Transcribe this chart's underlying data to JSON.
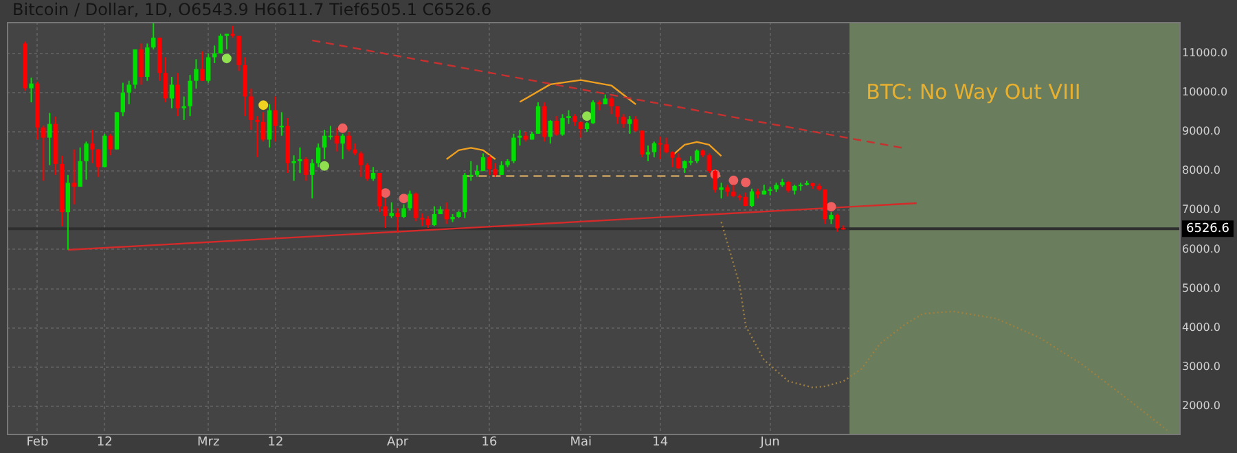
{
  "chart_data": {
    "type": "candlestick",
    "title": "Bitcoin / Dollar, 1D, O6543.9 H6611.7 Tief6505.1 C6526.6",
    "annotations": [
      "BTC: No Way Out VIII"
    ],
    "x": [
      "--01-30",
      "--01-31",
      "--02-01",
      "--02-02",
      "--02-03",
      "--02-04",
      "--02-05",
      "--02-06",
      "--02-07",
      "--02-08",
      "--02-09",
      "--02-10",
      "--02-11",
      "--02-12",
      "--02-13",
      "--02-14",
      "--02-15",
      "--02-16",
      "--02-17",
      "--02-18",
      "--02-19",
      "--02-20",
      "--02-21",
      "--02-22",
      "--02-23",
      "--02-24",
      "--02-25",
      "--02-26",
      "--02-27",
      "--02-28",
      "--03-01",
      "--03-02",
      "--03-03",
      "--03-04",
      "--03-05",
      "--03-06",
      "--03-07",
      "--03-08",
      "--03-09",
      "--03-10",
      "--03-11",
      "--03-12",
      "--03-13",
      "--03-14",
      "--03-15",
      "--03-16",
      "--03-17",
      "--03-18",
      "--03-19",
      "--03-20",
      "--03-21",
      "--03-22",
      "--03-23",
      "--03-24",
      "--03-25",
      "--03-26",
      "--03-27",
      "--03-28",
      "--03-29",
      "--03-30",
      "--03-31",
      "--04-01",
      "--04-02",
      "--04-03",
      "--04-04",
      "--04-05",
      "--04-06",
      "--04-07",
      "--04-08",
      "--04-09",
      "--04-10",
      "--04-11",
      "--04-12",
      "--04-13",
      "--04-14",
      "--04-15",
      "--04-16",
      "--04-17",
      "--04-18",
      "--04-19",
      "--04-20",
      "--04-21",
      "--04-22",
      "--04-23",
      "--04-24",
      "--04-25",
      "--04-26",
      "--04-27",
      "--04-28",
      "--04-29",
      "--04-30",
      "--05-01",
      "--05-02",
      "--05-03",
      "--05-04",
      "--05-05",
      "--05-06",
      "--05-07",
      "--05-08",
      "--05-09",
      "--05-10",
      "--05-11",
      "--05-12",
      "--05-13",
      "--05-14",
      "--05-15",
      "--05-16",
      "--05-17",
      "--05-18",
      "--05-19",
      "--05-20",
      "--05-21",
      "--05-22",
      "--05-23",
      "--05-24",
      "--05-25",
      "--05-26",
      "--05-27",
      "--05-28",
      "--05-29",
      "--05-30",
      "--05-31",
      "--06-01",
      "--06-02",
      "--06-03",
      "--06-04",
      "--06-05",
      "--06-06",
      "--06-07",
      "--06-08",
      "--06-09",
      "--06-10",
      "--06-11",
      "--06-12",
      "--06-13"
    ],
    "ohlc": [
      [
        11250,
        11300,
        10050,
        10110
      ],
      [
        10110,
        10380,
        9750,
        10230
      ],
      [
        10230,
        10280,
        8800,
        9110
      ],
      [
        9110,
        9160,
        7750,
        8850
      ],
      [
        8850,
        9480,
        8150,
        9200
      ],
      [
        9200,
        9390,
        7900,
        8180
      ],
      [
        8180,
        8390,
        6590,
        6950
      ],
      [
        6950,
        7900,
        5990,
        7700
      ],
      [
        7700,
        8550,
        7150,
        7600
      ],
      [
        7600,
        8600,
        7600,
        8250
      ],
      [
        8250,
        8750,
        7780,
        8700
      ],
      [
        8700,
        9050,
        8200,
        8550
      ],
      [
        8550,
        8560,
        7850,
        8100
      ],
      [
        8100,
        8950,
        8100,
        8900
      ],
      [
        8900,
        8950,
        8400,
        8550
      ],
      [
        8550,
        9500,
        8550,
        9500
      ],
      [
        9500,
        10250,
        9400,
        10000
      ],
      [
        10000,
        10300,
        9700,
        10200
      ],
      [
        10200,
        11100,
        10100,
        11100
      ],
      [
        11100,
        11250,
        10200,
        10400
      ],
      [
        10400,
        11250,
        10300,
        11150
      ],
      [
        11150,
        11800,
        11100,
        11400
      ],
      [
        11400,
        11400,
        10300,
        10500
      ],
      [
        10500,
        10900,
        9750,
        9850
      ],
      [
        9850,
        10400,
        9600,
        10200
      ],
      [
        10200,
        10500,
        9400,
        9600
      ],
      [
        9600,
        9900,
        9300,
        9650
      ],
      [
        9650,
        10450,
        9400,
        10300
      ],
      [
        10300,
        10850,
        10100,
        10600
      ],
      [
        10600,
        11050,
        10300,
        10300
      ],
      [
        10300,
        11000,
        10250,
        10900
      ],
      [
        10900,
        11200,
        10750,
        11000
      ],
      [
        11000,
        11500,
        11000,
        11450
      ],
      [
        11450,
        11500,
        11100,
        11500
      ],
      [
        11500,
        11700,
        11400,
        11450
      ],
      [
        11450,
        11450,
        10550,
        10700
      ],
      [
        10700,
        10900,
        9400,
        9900
      ],
      [
        9900,
        10100,
        9050,
        9300
      ],
      [
        9300,
        9400,
        8350,
        9250
      ],
      [
        9250,
        9500,
        8750,
        8800
      ],
      [
        8800,
        9700,
        8600,
        9550
      ],
      [
        9550,
        9900,
        8750,
        9150
      ],
      [
        9150,
        9500,
        8900,
        9150
      ],
      [
        9150,
        9350,
        7950,
        8200
      ],
      [
        8200,
        8400,
        7750,
        8250
      ],
      [
        8250,
        8600,
        7950,
        8300
      ],
      [
        8300,
        8350,
        7750,
        7900
      ],
      [
        7900,
        8300,
        7300,
        8200
      ],
      [
        8200,
        8700,
        8100,
        8600
      ],
      [
        8600,
        9050,
        8300,
        8900
      ],
      [
        8900,
        9150,
        8800,
        8900
      ],
      [
        8900,
        9100,
        8500,
        8700
      ],
      [
        8700,
        8950,
        8300,
        8900
      ],
      [
        8900,
        9000,
        8500,
        8550
      ],
      [
        8550,
        8700,
        8400,
        8450
      ],
      [
        8450,
        8500,
        7850,
        8150
      ],
      [
        8150,
        8200,
        7750,
        7800
      ],
      [
        7800,
        8100,
        7750,
        7950
      ],
      [
        7950,
        7950,
        6950,
        7100
      ],
      [
        7100,
        7300,
        6550,
        6850
      ],
      [
        6850,
        7200,
        6800,
        6930
      ],
      [
        6930,
        7050,
        6450,
        6830
      ],
      [
        6830,
        7150,
        6800,
        7050
      ],
      [
        7050,
        7500,
        7000,
        7420
      ],
      [
        7420,
        7450,
        6720,
        6800
      ],
      [
        6800,
        6920,
        6600,
        6780
      ],
      [
        6780,
        6850,
        6550,
        6620
      ],
      [
        6620,
        7100,
        6600,
        6900
      ],
      [
        6900,
        7100,
        6900,
        7020
      ],
      [
        7020,
        7200,
        6650,
        6770
      ],
      [
        6770,
        6900,
        6700,
        6830
      ],
      [
        6830,
        6980,
        6800,
        6950
      ],
      [
        6950,
        7950,
        6800,
        7900
      ],
      [
        7900,
        8250,
        7750,
        7900
      ],
      [
        7900,
        8150,
        7850,
        8000
      ],
      [
        8000,
        8450,
        8000,
        8350
      ],
      [
        8350,
        8400,
        7900,
        8050
      ],
      [
        8050,
        8200,
        7850,
        7900
      ],
      [
        7900,
        8250,
        7900,
        8150
      ],
      [
        8150,
        8300,
        8100,
        8250
      ],
      [
        8250,
        8950,
        8200,
        8850
      ],
      [
        8850,
        9050,
        8650,
        8900
      ],
      [
        8900,
        9000,
        8750,
        8800
      ],
      [
        8800,
        9000,
        8800,
        8950
      ],
      [
        8950,
        9750,
        8950,
        9650
      ],
      [
        9650,
        9750,
        8750,
        8870
      ],
      [
        8870,
        9300,
        8700,
        9280
      ],
      [
        9280,
        9400,
        8900,
        8930
      ],
      [
        8930,
        9450,
        8900,
        9350
      ],
      [
        9350,
        9550,
        9200,
        9400
      ],
      [
        9400,
        9450,
        9150,
        9250
      ],
      [
        9250,
        9250,
        8850,
        9070
      ],
      [
        9070,
        9250,
        9000,
        9220
      ],
      [
        9220,
        9800,
        9200,
        9750
      ],
      [
        9750,
        9800,
        9550,
        9700
      ],
      [
        9700,
        9950,
        9700,
        9850
      ],
      [
        9850,
        9900,
        9450,
        9650
      ],
      [
        9650,
        9650,
        9200,
        9380
      ],
      [
        9380,
        9450,
        9100,
        9200
      ],
      [
        9200,
        9400,
        8950,
        9320
      ],
      [
        9320,
        9400,
        9000,
        9030
      ],
      [
        9030,
        9030,
        8350,
        8420
      ],
      [
        8420,
        8650,
        8250,
        8480
      ],
      [
        8480,
        8750,
        8350,
        8710
      ],
      [
        8710,
        8880,
        8300,
        8680
      ],
      [
        8680,
        8850,
        8450,
        8480
      ],
      [
        8480,
        8500,
        8100,
        8340
      ],
      [
        8340,
        8450,
        8050,
        8070
      ],
      [
        8070,
        8270,
        7950,
        8250
      ],
      [
        8250,
        8380,
        8150,
        8250
      ],
      [
        8250,
        8550,
        8200,
        8520
      ],
      [
        8520,
        8550,
        8350,
        8400
      ],
      [
        8400,
        8450,
        7950,
        8000
      ],
      [
        8000,
        8050,
        7450,
        7520
      ],
      [
        7520,
        7700,
        7300,
        7580
      ],
      [
        7580,
        7650,
        7350,
        7470
      ],
      [
        7470,
        7650,
        7330,
        7360
      ],
      [
        7360,
        7400,
        7250,
        7340
      ],
      [
        7340,
        7450,
        7100,
        7110
      ],
      [
        7110,
        7550,
        7080,
        7480
      ],
      [
        7480,
        7550,
        7300,
        7400
      ],
      [
        7400,
        7650,
        7400,
        7500
      ],
      [
        7500,
        7600,
        7380,
        7530
      ],
      [
        7530,
        7700,
        7460,
        7640
      ],
      [
        7640,
        7800,
        7600,
        7720
      ],
      [
        7720,
        7750,
        7450,
        7500
      ],
      [
        7500,
        7650,
        7400,
        7620
      ],
      [
        7620,
        7700,
        7500,
        7650
      ],
      [
        7650,
        7750,
        7630,
        7690
      ],
      [
        7690,
        7700,
        7550,
        7620
      ],
      [
        7620,
        7680,
        7500,
        7530
      ],
      [
        7530,
        7530,
        6650,
        6770
      ],
      [
        6770,
        6950,
        6650,
        6880
      ],
      [
        6880,
        6910,
        6450,
        6540
      ],
      [
        6543.9,
        6611.7,
        6505.1,
        6526.6
      ]
    ],
    "series": [
      {
        "type": "line",
        "color": "#d42a2a",
        "line_style": "solid",
        "x": [
          "--02-06",
          "--06-25"
        ],
        "values": [
          5990,
          7180
        ]
      },
      {
        "type": "line",
        "color": "#c83030",
        "line_style": "dashed",
        "x": [
          "--03-18",
          "--06-23"
        ],
        "values": [
          11330,
          8580
        ]
      },
      {
        "type": "line",
        "color": "#f0a020",
        "line_style": "solid",
        "x": [
          "--04-09",
          "--04-11",
          "--04-13",
          "--04-15",
          "--04-17"
        ],
        "values": [
          8300,
          8530,
          8590,
          8530,
          8300
        ]
      },
      {
        "type": "line",
        "color": "#f0a020",
        "line_style": "solid",
        "x": [
          "--04-21",
          "--04-26",
          "--05-01",
          "--05-06",
          "--05-10"
        ],
        "values": [
          9760,
          10210,
          10320,
          10180,
          9700
        ]
      },
      {
        "type": "line",
        "color": "#f0a020",
        "line_style": "solid",
        "x": [
          "--05-16",
          "--05-18",
          "--05-20",
          "--05-22",
          "--05-24"
        ],
        "values": [
          8400,
          8670,
          8740,
          8670,
          8380
        ]
      },
      {
        "type": "line",
        "color": "#c8a060",
        "line_style": "dashed",
        "x": [
          "--04-12",
          "--05-24"
        ],
        "values": [
          7870,
          7870
        ]
      },
      {
        "type": "line",
        "color": "#a08040",
        "line_style": "dotted",
        "x": [
          "--05-24",
          "--05-27",
          "--05-28",
          "--05-31",
          "--06-04",
          "--06-08",
          "--06-10",
          "--06-13",
          "--06-16",
          "--06-19",
          "--06-23",
          "--06-26",
          "--07-01",
          "--07-08",
          "--07-15",
          "--07-22",
          "--07-30",
          "--08-05"
        ],
        "values": [
          6700,
          5100,
          4050,
          3180,
          2640,
          2480,
          2510,
          2640,
          2960,
          3600,
          4080,
          4360,
          4420,
          4240,
          3760,
          3080,
          2130,
          1390
        ]
      },
      {
        "type": "scatter",
        "color": "#90e050",
        "marker": "circle",
        "x": [
          "--03-04",
          "--03-20",
          "--05-02"
        ],
        "values": [
          10870,
          8130,
          9400
        ]
      },
      {
        "type": "scatter",
        "color": "#f06060",
        "marker": "circle",
        "x": [
          "--03-23",
          "--03-30",
          "--04-02",
          "--05-23",
          "--05-26",
          "--05-28",
          "--06-11"
        ],
        "values": [
          9090,
          7440,
          7300,
          7910,
          7760,
          7710,
          7090
        ]
      },
      {
        "type": "scatter",
        "color": "#f0d020",
        "marker": "circle",
        "x": [
          "--03-10"
        ],
        "values": [
          9680
        ]
      }
    ],
    "ref_lines": [
      {
        "axis": "y",
        "value": 6526.6,
        "label": "6526.6",
        "color": "#2f2f2f"
      }
    ],
    "bands": [
      {
        "axis": "x",
        "from": "--06-14",
        "to": "--08-07",
        "color": "#6a7d5c"
      }
    ],
    "xlim": [
      "--01-27",
      "--08-07"
    ],
    "xticks": [
      {
        "value": "--02-01",
        "label": "Feb"
      },
      {
        "value": "--02-12",
        "label": "12"
      },
      {
        "value": "--03-01",
        "label": "Mrz"
      },
      {
        "value": "--03-12",
        "label": "12"
      },
      {
        "value": "--04-01",
        "label": "Apr"
      },
      {
        "value": "--04-16",
        "label": "16"
      },
      {
        "value": "--05-01",
        "label": "Mai"
      },
      {
        "value": "--05-14",
        "label": "14"
      },
      {
        "value": "--06-01",
        "label": "Jun"
      }
    ],
    "ylim": [
      1300,
      11800
    ],
    "yticks": [
      {
        "value": 2000,
        "label": "2000.0"
      },
      {
        "value": 3000,
        "label": "3000.0"
      },
      {
        "value": 4000,
        "label": "4000.0"
      },
      {
        "value": 5000,
        "label": "5000.0"
      },
      {
        "value": 6000,
        "label": "6000.0"
      },
      {
        "value": 7000,
        "label": "7000.0"
      },
      {
        "value": 8000,
        "label": "8000.0"
      },
      {
        "value": 9000,
        "label": "9000.0"
      },
      {
        "value": 10000,
        "label": "10000.0"
      },
      {
        "value": 11000,
        "label": "11000.0"
      }
    ],
    "grid": true
  }
}
